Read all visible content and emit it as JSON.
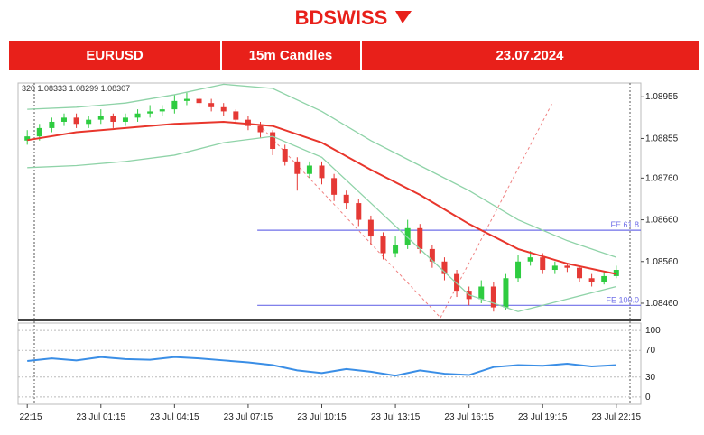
{
  "brand": "BDSWISS",
  "header": {
    "symbol": "EURUSD",
    "timeframe": "15m Candles",
    "date": "23.07.2024"
  },
  "chart_data": [
    {
      "type": "candlestick",
      "info": "320 1.08333 1.08299 1.08307",
      "up_color": "#2ecc40",
      "down_color": "#e53935",
      "x": [
        0,
        2,
        4,
        6,
        8,
        10,
        12,
        14,
        16,
        18,
        20,
        22,
        24,
        26,
        28,
        30,
        32,
        34,
        36,
        38,
        40,
        42,
        44,
        46,
        48,
        50,
        52,
        54,
        56,
        58,
        60,
        62,
        64,
        66,
        68,
        70,
        72,
        74,
        76,
        78,
        80,
        82,
        84,
        86,
        88,
        90,
        92,
        94,
        96
      ],
      "open": [
        1.0885,
        1.0886,
        1.0888,
        1.08895,
        1.08905,
        1.0889,
        1.089,
        1.0891,
        1.08895,
        1.08905,
        1.08915,
        1.0892,
        1.08925,
        1.08945,
        1.0895,
        1.0894,
        1.0893,
        1.0892,
        1.089,
        1.08885,
        1.0887,
        1.0883,
        1.088,
        1.0877,
        1.0879,
        1.0876,
        1.0872,
        1.087,
        1.0866,
        1.0862,
        1.0858,
        1.086,
        1.0864,
        1.0859,
        1.0856,
        1.0853,
        1.0849,
        1.0847,
        1.085,
        1.0845,
        1.0852,
        1.0856,
        1.0857,
        1.0854,
        1.0855,
        1.08545,
        1.0852,
        1.0851,
        1.08525
      ],
      "high": [
        1.08875,
        1.0889,
        1.08905,
        1.08915,
        1.08915,
        1.0891,
        1.08925,
        1.08915,
        1.08915,
        1.08925,
        1.08935,
        1.08935,
        1.0896,
        1.08965,
        1.08955,
        1.0895,
        1.0894,
        1.08925,
        1.0891,
        1.08895,
        1.08875,
        1.0884,
        1.0881,
        1.088,
        1.088,
        1.0877,
        1.0873,
        1.0871,
        1.0867,
        1.0863,
        1.0862,
        1.0866,
        1.0865,
        1.086,
        1.0857,
        1.0854,
        1.085,
        1.08515,
        1.0851,
        1.0853,
        1.08575,
        1.08585,
        1.0858,
        1.0856,
        1.08555,
        1.0855,
        1.0853,
        1.08535,
        1.0855
      ],
      "low": [
        1.0884,
        1.0885,
        1.0887,
        1.08885,
        1.0888,
        1.0888,
        1.0889,
        1.0888,
        1.08885,
        1.08895,
        1.08905,
        1.0891,
        1.08915,
        1.08935,
        1.0893,
        1.0892,
        1.0891,
        1.0889,
        1.08875,
        1.08855,
        1.08815,
        1.0879,
        1.0873,
        1.0876,
        1.08745,
        1.08705,
        1.08685,
        1.08645,
        1.086,
        1.08565,
        1.0857,
        1.0859,
        1.0858,
        1.08545,
        1.08515,
        1.08475,
        1.08455,
        1.0846,
        1.0844,
        1.08445,
        1.0851,
        1.0855,
        1.0853,
        1.0853,
        1.08535,
        1.0851,
        1.085,
        1.08505,
        1.0852
      ],
      "close": [
        1.0886,
        1.0888,
        1.08895,
        1.08905,
        1.0889,
        1.089,
        1.0891,
        1.08895,
        1.08905,
        1.08915,
        1.0892,
        1.08925,
        1.08945,
        1.0895,
        1.0894,
        1.0893,
        1.0892,
        1.089,
        1.08885,
        1.0887,
        1.0883,
        1.088,
        1.0877,
        1.0879,
        1.0876,
        1.0872,
        1.087,
        1.0866,
        1.0862,
        1.0858,
        1.086,
        1.0864,
        1.0859,
        1.0856,
        1.0853,
        1.0849,
        1.0847,
        1.085,
        1.0845,
        1.0852,
        1.0856,
        1.0857,
        1.0854,
        1.0855,
        1.08545,
        1.0852,
        1.0851,
        1.08525,
        1.0854
      ],
      "lines": [
        {
          "color": "#e8362c",
          "x": [
            0,
            8,
            16,
            24,
            32,
            40,
            48,
            56,
            64,
            72,
            80,
            88,
            96
          ],
          "values": [
            1.08851,
            1.0887,
            1.0888,
            1.0889,
            1.08895,
            1.08885,
            1.08845,
            1.0878,
            1.0872,
            1.0865,
            1.0859,
            1.08555,
            1.0853
          ]
        },
        {
          "color": "#8fd3a8",
          "x": [
            0,
            8,
            16,
            24,
            32,
            40,
            48,
            56,
            64,
            72,
            80,
            88,
            96
          ],
          "values": [
            1.08925,
            1.0893,
            1.0894,
            1.0896,
            1.08985,
            1.08975,
            1.0892,
            1.0885,
            1.0879,
            1.0873,
            1.0866,
            1.0861,
            1.0857
          ]
        },
        {
          "color": "#8fd3a8",
          "x": [
            0,
            8,
            16,
            24,
            32,
            40,
            48,
            56,
            64,
            72,
            80,
            88,
            96
          ],
          "values": [
            1.08785,
            1.0879,
            1.088,
            1.08815,
            1.08845,
            1.0886,
            1.0881,
            1.087,
            1.0859,
            1.0848,
            1.0844,
            1.0847,
            1.085
          ]
        }
      ],
      "levels": [
        {
          "label": "FE 61.8",
          "value": 1.08635,
          "start": 37.5,
          "color": "#6f6fe8"
        },
        {
          "label": "FE 100.0",
          "value": 1.08455,
          "start": 37.5,
          "color": "#6f6fe8"
        }
      ],
      "xlim": [
        -1.5,
        100
      ],
      "xticks": [
        {
          "value": 0,
          "label": "22:15"
        },
        {
          "value": 12,
          "label": "23 Jul 01:15"
        },
        {
          "value": 24,
          "label": "23 Jul 04:15"
        },
        {
          "value": 36,
          "label": "23 Jul 07:15"
        },
        {
          "value": 48,
          "label": "23 Jul 10:15"
        },
        {
          "value": 60,
          "label": "23 Jul 13:15"
        },
        {
          "value": 72,
          "label": "23 Jul 16:15"
        },
        {
          "value": 84,
          "label": "23 Jul 19:15"
        },
        {
          "value": 96,
          "label": "23 Jul 22:15"
        }
      ],
      "ylim": [
        1.08421,
        1.08988
      ],
      "yticks": [
        1.08955,
        1.08855,
        {
          "value": 1.0876,
          "label": "1.08760"
        },
        {
          "value": 1.0866,
          "label": "1.08660"
        },
        {
          "value": 1.0856,
          "label": "1.08560"
        },
        {
          "value": 1.0846,
          "label": "1.08460"
        }
      ]
    },
    {
      "type": "line",
      "ylim": [
        -11,
        111
      ],
      "yticks": [
        100,
        70,
        30,
        0
      ],
      "series": [
        {
          "color": "#3a8ee6",
          "x": [
            0,
            4,
            8,
            12,
            16,
            20,
            24,
            28,
            32,
            36,
            40,
            44,
            48,
            52,
            56,
            60,
            64,
            68,
            72,
            76,
            80,
            84,
            88,
            92,
            96
          ],
          "values": [
            54,
            58,
            55,
            60,
            57,
            56,
            60,
            58,
            55,
            52,
            48,
            40,
            36,
            42,
            38,
            32,
            40,
            35,
            33,
            45,
            48,
            47,
            50,
            46,
            48
          ]
        }
      ]
    }
  ]
}
